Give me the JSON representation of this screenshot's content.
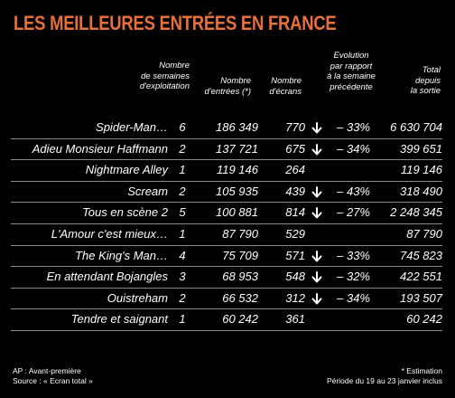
{
  "title": "LES MEILLEURES ENTRÉES EN FRANCE",
  "headers": {
    "weeks": "Nombre\nde semaines\nd'exploitation",
    "entries": "Nombre\nd'entrées (*)",
    "screens": "Nombre\nd'écrans",
    "evolution": "Evolution\npar rapport\nà la semaine\nprécédente",
    "total": "Total\ndepuis\nla sortie"
  },
  "rows": [
    {
      "title": "Spider-Man…",
      "weeks": "6",
      "entries": "186 349",
      "screens": "770",
      "arrow": true,
      "evolution": "– 33%",
      "total": "6 630 704"
    },
    {
      "title": "Adieu Monsieur Haffmann",
      "weeks": "2",
      "entries": "137 721",
      "screens": "675",
      "arrow": true,
      "evolution": "– 34%",
      "total": "399 651"
    },
    {
      "title": "Nightmare Alley",
      "weeks": "1",
      "entries": "119 146",
      "screens": "264",
      "arrow": false,
      "evolution": "",
      "total": "119 146"
    },
    {
      "title": "Scream",
      "weeks": "2",
      "entries": "105 935",
      "screens": "439",
      "arrow": true,
      "evolution": "– 43%",
      "total": "318 490"
    },
    {
      "title": "Tous en scène 2",
      "weeks": "5",
      "entries": "100 881",
      "screens": "814",
      "arrow": true,
      "evolution": "– 27%",
      "total": "2 248 345"
    },
    {
      "title": "L'Amour c'est mieux…",
      "weeks": "1",
      "entries": "87 790",
      "screens": "529",
      "arrow": false,
      "evolution": "",
      "total": "87 790"
    },
    {
      "title": "The King's Man…",
      "weeks": "4",
      "entries": "75 709",
      "screens": "571",
      "arrow": true,
      "evolution": "– 33%",
      "total": "745 823"
    },
    {
      "title": "En attendant Bojangles",
      "weeks": "3",
      "entries": "68 953",
      "screens": "548",
      "arrow": true,
      "evolution": "– 32%",
      "total": "422 551"
    },
    {
      "title": "Ouistreham",
      "weeks": "2",
      "entries": "66 532",
      "screens": "312",
      "arrow": true,
      "evolution": "– 34%",
      "total": "193 507"
    },
    {
      "title": "Tendre et saignant",
      "weeks": "1",
      "entries": "60 242",
      "screens": "361",
      "arrow": false,
      "evolution": "",
      "total": "60 242"
    }
  ],
  "footer": {
    "left": "AP : Avant-première\nSource : « Ecran total »",
    "right": "* Estimation\nPériode du 19 au 23 janvier inclus"
  },
  "colors": {
    "title": "#e8703a",
    "background": "#000000",
    "rule": "#8a8a8a"
  },
  "icons": {
    "decline": "arrow-down-icon"
  }
}
